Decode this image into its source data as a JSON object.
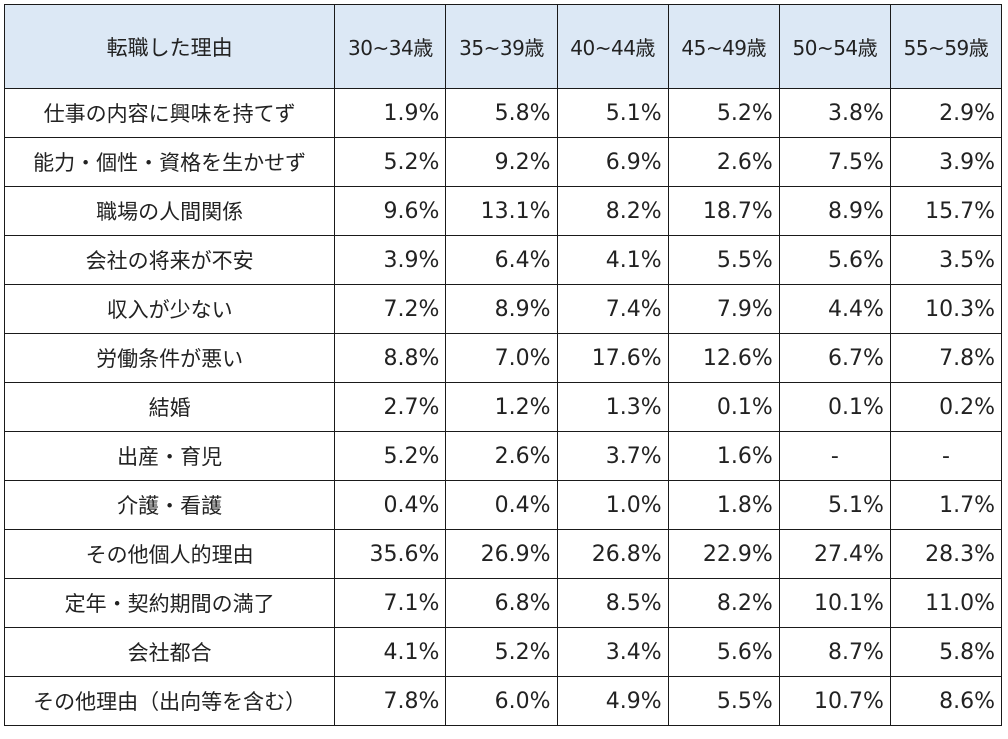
{
  "table": {
    "header_label": "転職した理由",
    "age_groups": [
      "30~34歳",
      "35~39歳",
      "40~44歳",
      "45~49歳",
      "50~54歳",
      "55~59歳"
    ],
    "rows": [
      {
        "reason": "仕事の内容に興味を持てず",
        "values": [
          "1.9%",
          "5.8%",
          "5.1%",
          "5.2%",
          "3.8%",
          "2.9%"
        ]
      },
      {
        "reason": "能力・個性・資格を生かせず",
        "values": [
          "5.2%",
          "9.2%",
          "6.9%",
          "2.6%",
          "7.5%",
          "3.9%"
        ]
      },
      {
        "reason": "職場の人間関係",
        "values": [
          "9.6%",
          "13.1%",
          "8.2%",
          "18.7%",
          "8.9%",
          "15.7%"
        ]
      },
      {
        "reason": "会社の将来が不安",
        "values": [
          "3.9%",
          "6.4%",
          "4.1%",
          "5.5%",
          "5.6%",
          "3.5%"
        ]
      },
      {
        "reason": "収入が少ない",
        "values": [
          "7.2%",
          "8.9%",
          "7.4%",
          "7.9%",
          "4.4%",
          "10.3%"
        ]
      },
      {
        "reason": "労働条件が悪い",
        "values": [
          "8.8%",
          "7.0%",
          "17.6%",
          "12.6%",
          "6.7%",
          "7.8%"
        ]
      },
      {
        "reason": "結婚",
        "values": [
          "2.7%",
          "1.2%",
          "1.3%",
          "0.1%",
          "0.1%",
          "0.2%"
        ]
      },
      {
        "reason": "出産・育児",
        "values": [
          "5.2%",
          "2.6%",
          "3.7%",
          "1.6%",
          "-",
          "-"
        ]
      },
      {
        "reason": "介護・看護",
        "values": [
          "0.4%",
          "0.4%",
          "1.0%",
          "1.8%",
          "5.1%",
          "1.7%"
        ]
      },
      {
        "reason": "その他個人的理由",
        "values": [
          "35.6%",
          "26.9%",
          "26.8%",
          "22.9%",
          "27.4%",
          "28.3%"
        ]
      },
      {
        "reason": "定年・契約期間の満了",
        "values": [
          "7.1%",
          "6.8%",
          "8.5%",
          "8.2%",
          "10.1%",
          "11.0%"
        ]
      },
      {
        "reason": "会社都合",
        "values": [
          "4.1%",
          "5.2%",
          "3.4%",
          "5.6%",
          "8.7%",
          "5.8%"
        ]
      },
      {
        "reason": "その他理由（出向等を含む）",
        "values": [
          "7.8%",
          "6.0%",
          "4.9%",
          "5.5%",
          "10.7%",
          "8.6%"
        ]
      }
    ]
  },
  "colors": {
    "header_background": "#dce8f5",
    "border": "#1a1a1a",
    "text": "#222222"
  }
}
